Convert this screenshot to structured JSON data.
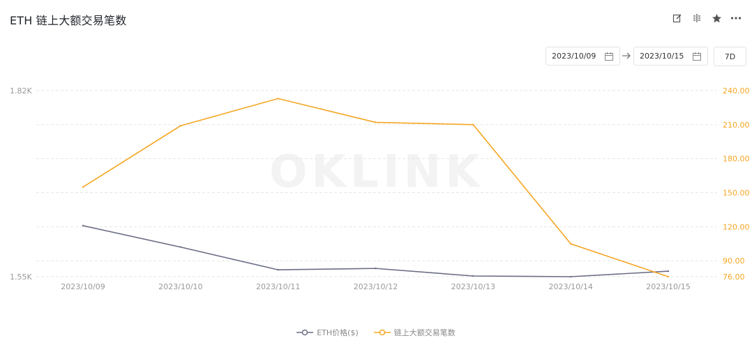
{
  "header": {
    "title": "ETH 链上大额交易笔数"
  },
  "toolbar": {
    "icons": [
      "edit-icon",
      "split-icon",
      "star-icon",
      "more-icon"
    ]
  },
  "date_range": {
    "start": "2023/10/09",
    "end": "2023/10/15",
    "range_label": "7D"
  },
  "watermark": "OKLINK",
  "colors": {
    "eth_price": "#6b6d85",
    "large_tx": "#f5a623",
    "grid": "#e6e6e6",
    "axis_text": "#999999",
    "right_axis_text": "#f5a623"
  },
  "chart_data": {
    "type": "line",
    "x": [
      "2023/10/09",
      "2023/10/10",
      "2023/10/11",
      "2023/10/12",
      "2023/10/13",
      "2023/10/14",
      "2023/10/15"
    ],
    "left_axis": {
      "ticks": [
        "1.82K",
        "1.55K"
      ],
      "ylim": [
        1550,
        1820
      ]
    },
    "right_axis": {
      "ticks": [
        "240.00",
        "210.00",
        "180.00",
        "150.00",
        "120.00",
        "90.00",
        "76.00"
      ],
      "ylim": [
        76,
        240
      ]
    },
    "series": [
      {
        "name": "ETH价格($)",
        "axis": "left",
        "values": [
          1624,
          1593,
          1560,
          1562,
          1551,
          1550,
          1558
        ]
      },
      {
        "name": "链上大额交易笔数",
        "axis": "right",
        "values": [
          155,
          209,
          233,
          212,
          210,
          105,
          76
        ]
      }
    ],
    "grid": true,
    "legend_position": "bottom"
  }
}
